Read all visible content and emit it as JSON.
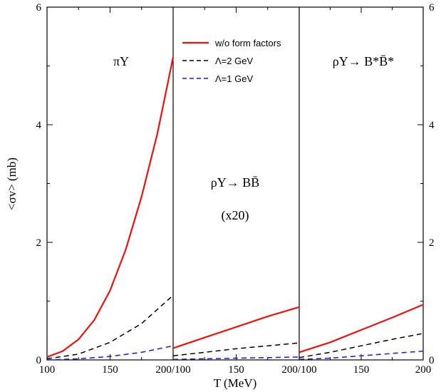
{
  "chart_data": {
    "type": "line",
    "xlabel": "T (MeV)",
    "ylabel": "<σv> (mb)",
    "ylim": [
      0,
      6
    ],
    "y_ticks": [
      "0",
      "2",
      "4",
      "6"
    ],
    "x_tick_text": [
      "100",
      "150",
      "200/100",
      "150",
      "200/100",
      "150",
      "200"
    ],
    "legend": {
      "placement": "top (middle panel)",
      "entries": [
        {
          "label": "w/o form factors",
          "color": "#e8130f",
          "dash": "solid"
        },
        {
          "label": "Λ=2 GeV",
          "color": "#000000",
          "dash": "dashed"
        },
        {
          "label": "Λ=1 GeV",
          "color": "#1a1ad6",
          "dash": "dashed"
        }
      ]
    },
    "panels": [
      {
        "label": "πY",
        "annotations": [],
        "xlim": [
          100,
          200
        ],
        "series": [
          {
            "legend_index": 0,
            "x": [
              100,
              112.5,
              125,
              137.5,
              150,
              162.5,
              175,
              187.5,
              200
            ],
            "y": [
              0.05,
              0.15,
              0.35,
              0.68,
              1.18,
              1.88,
              2.78,
              3.85,
              5.15
            ]
          },
          {
            "legend_index": 1,
            "x": [
              100,
              125,
              150,
              175,
              200
            ],
            "y": [
              0.02,
              0.1,
              0.3,
              0.62,
              1.1
            ]
          },
          {
            "legend_index": 2,
            "x": [
              100,
              125,
              150,
              175,
              200
            ],
            "y": [
              0.0,
              0.02,
              0.06,
              0.13,
              0.24
            ]
          }
        ]
      },
      {
        "label": "ρY→ BB̄",
        "annotations": [
          "(x20)"
        ],
        "xlim": [
          100,
          200
        ],
        "series": [
          {
            "legend_index": 0,
            "x": [
              100,
              125,
              150,
              175,
              200
            ],
            "y": [
              0.2,
              0.38,
              0.56,
              0.74,
              0.9
            ]
          },
          {
            "legend_index": 1,
            "x": [
              100,
              125,
              150,
              175,
              200
            ],
            "y": [
              0.07,
              0.13,
              0.19,
              0.24,
              0.29
            ]
          },
          {
            "legend_index": 2,
            "x": [
              100,
              125,
              150,
              175,
              200
            ],
            "y": [
              0.01,
              0.02,
              0.03,
              0.04,
              0.05
            ]
          }
        ]
      },
      {
        "label": "ρY→ B*B̄*",
        "annotations": [],
        "xlim": [
          100,
          200
        ],
        "series": [
          {
            "legend_index": 0,
            "x": [
              100,
              125,
              150,
              175,
              200
            ],
            "y": [
              0.13,
              0.3,
              0.51,
              0.72,
              0.94
            ]
          },
          {
            "legend_index": 1,
            "x": [
              100,
              125,
              150,
              175,
              200
            ],
            "y": [
              0.04,
              0.13,
              0.24,
              0.35,
              0.45
            ]
          },
          {
            "legend_index": 2,
            "x": [
              100,
              125,
              150,
              175,
              200
            ],
            "y": [
              0.01,
              0.03,
              0.07,
              0.11,
              0.15
            ]
          }
        ]
      }
    ]
  }
}
